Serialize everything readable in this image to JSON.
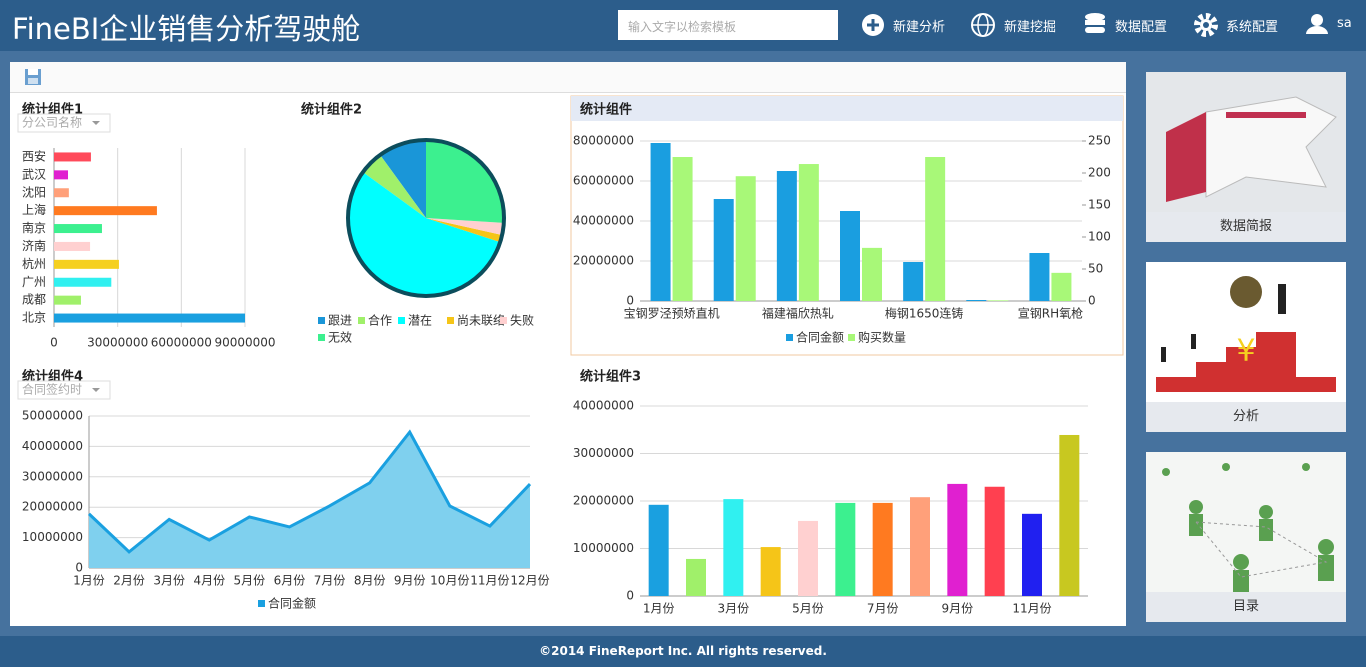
{
  "header": {
    "title": "FineBI企业销售分析驾驶舱",
    "search_placeholder": "输入文字以检索模板",
    "nav": [
      "新建分析",
      "新建挖掘",
      "数据配置",
      "系统配置"
    ],
    "user": "sa"
  },
  "chart_data": [
    {
      "type": "bar",
      "orientation": "horizontal",
      "title": "统计组件1",
      "filter": "分公司名称",
      "categories": [
        "西安",
        "武汉",
        "沈阳",
        "上海",
        "南京",
        "济南",
        "杭州",
        "广州",
        "成都",
        "北京"
      ],
      "values": [
        17400000,
        6600000,
        7000000,
        48500000,
        22600000,
        17000000,
        30600000,
        27000000,
        12700000,
        90000000
      ],
      "colors": [
        "#ff4a5a",
        "#e020d0",
        "#ffa07a",
        "#ff7a20",
        "#3cf08f",
        "#ffd0d0",
        "#f5d020",
        "#30f0f0",
        "#a0f06a",
        "#1aa0e0"
      ],
      "xlim": [
        0,
        90000000
      ],
      "xticks": [
        0,
        30000000,
        60000000,
        90000000
      ],
      "grid": true
    },
    {
      "type": "pie",
      "title": "统计组件2",
      "categories": [
        "跟进",
        "合作",
        "潜在",
        "尚未联络",
        "失败",
        "无效"
      ],
      "values": [
        10,
        5,
        55,
        1.5,
        2.5,
        26
      ],
      "colors": [
        "#1a96d8",
        "#a0f06a",
        "#00ffff",
        "#f5c518",
        "#ffd0d0",
        "#3cf08f"
      ]
    },
    {
      "type": "bar",
      "title": "统计组件",
      "categories": [
        "宝钢罗泾预矫直机",
        null,
        "福建福欣热轧",
        null,
        "梅钢1650连铸",
        null,
        "宣钢RH氧枪"
      ],
      "series": [
        {
          "name": "合同金额",
          "color": "#1a9ee0",
          "values": [
            79000000,
            51000000,
            65000000,
            45000000,
            19500000,
            500000,
            24000000
          ]
        },
        {
          "name": "购买数量",
          "color": "#a8f878",
          "axis": "y2",
          "values": [
            225,
            195,
            214,
            83,
            225,
            1,
            44
          ]
        }
      ],
      "ylim": [
        0,
        80000000
      ],
      "yticks": [
        0,
        20000000,
        40000000,
        60000000,
        80000000
      ],
      "y2lim": [
        0,
        250
      ],
      "y2ticks": [
        0,
        50,
        100,
        150,
        200,
        250
      ],
      "grid": true
    },
    {
      "type": "area",
      "title": "统计组件4",
      "filter": "合同签约时",
      "categories": [
        "1月份",
        "2月份",
        "3月份",
        "4月份",
        "5月份",
        "6月份",
        "7月份",
        "8月份",
        "9月份",
        "10月份",
        "11月份",
        "12月份"
      ],
      "series": [
        {
          "name": "合同金额",
          "color": "#1aa0e0",
          "values": [
            17800000,
            5300000,
            16000000,
            9200000,
            16800000,
            13500000,
            20400000,
            28000000,
            44700000,
            20400000,
            13800000,
            27600000
          ]
        }
      ],
      "ylim": [
        0,
        50000000
      ],
      "yticks": [
        0,
        10000000,
        20000000,
        30000000,
        40000000,
        50000000
      ],
      "grid": true
    },
    {
      "type": "bar",
      "title": "统计组件3",
      "categories": [
        "1月份",
        null,
        "3月份",
        null,
        "5月份",
        null,
        "7月份",
        null,
        "9月份",
        null,
        "11月份",
        null
      ],
      "values": [
        19200000,
        7800000,
        20400000,
        10300000,
        15800000,
        19600000,
        19600000,
        20800000,
        23600000,
        23000000,
        17300000,
        33900000
      ],
      "colors": [
        "#1aa0e0",
        "#a0f06a",
        "#30f0f0",
        "#f5c518",
        "#ffd0d0",
        "#3cf08f",
        "#ff7a20",
        "#ffa07a",
        "#e020d0",
        "#ff4050",
        "#2020f0",
        "#c8c820"
      ],
      "ylim": [
        0,
        40000000
      ],
      "yticks": [
        0,
        10000000,
        20000000,
        30000000,
        40000000
      ],
      "grid": true
    }
  ],
  "sidebar": [
    "数据简报",
    "分析",
    "目录"
  ],
  "footer": "©2014 FineReport Inc. All rights reserved."
}
